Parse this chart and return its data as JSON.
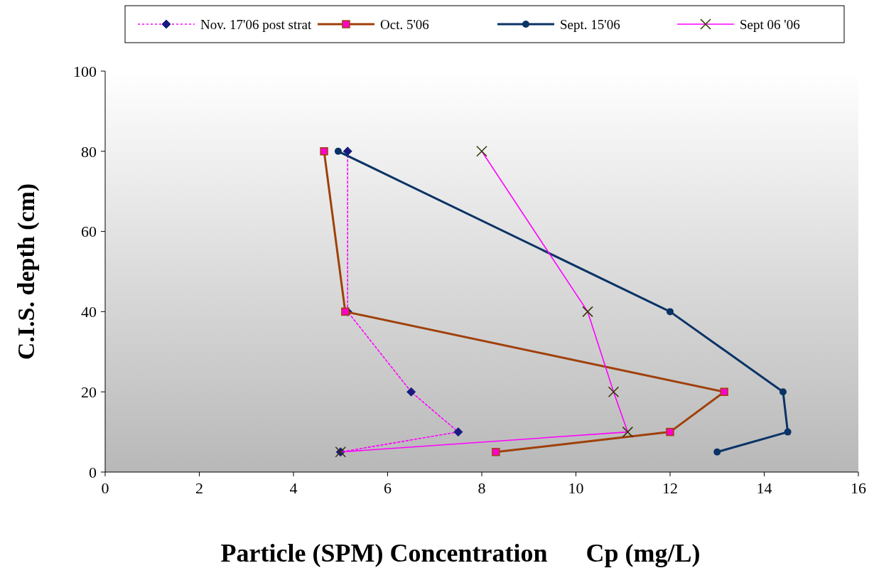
{
  "chart_data": {
    "type": "line",
    "xlabel": "Particle (SPM) Concentration      Cp (mg/L)",
    "ylabel": "C.I.S. depth (cm)",
    "xlim": [
      0,
      16
    ],
    "xticks": [
      0,
      2,
      4,
      6,
      8,
      10,
      12,
      14,
      16
    ],
    "ylim": [
      0,
      100
    ],
    "yticks": [
      0,
      20,
      40,
      60,
      80,
      100
    ],
    "grid": false,
    "legend": "top",
    "series": [
      {
        "name": "Nov. 17'06 post strat",
        "color": "#ff00ff",
        "marker": "diamond",
        "line_style": "dotted",
        "x": [
          5.15,
          5.15,
          6.5,
          7.5,
          5.0
        ],
        "values": [
          80,
          40,
          20,
          10,
          5
        ]
      },
      {
        "name": "Oct. 5'06",
        "color": "#a0400a",
        "marker": "square",
        "line_style": "solid",
        "x": [
          4.65,
          5.1,
          13.15,
          12.0,
          8.3
        ],
        "values": [
          80,
          40,
          20,
          10,
          5
        ]
      },
      {
        "name": "Sept. 15'06",
        "color": "#0a3366",
        "marker": "circle",
        "line_style": "solid",
        "x": [
          4.95,
          12.0,
          14.4,
          14.5,
          13.0
        ],
        "values": [
          80,
          40,
          20,
          10,
          5
        ]
      },
      {
        "name": "Sept 06 '06",
        "color": "#ff00ff",
        "marker": "cross",
        "line_style": "solid",
        "x": [
          8.0,
          10.25,
          10.8,
          11.1,
          5.0
        ],
        "values": [
          80,
          40,
          20,
          10,
          5
        ]
      }
    ]
  }
}
